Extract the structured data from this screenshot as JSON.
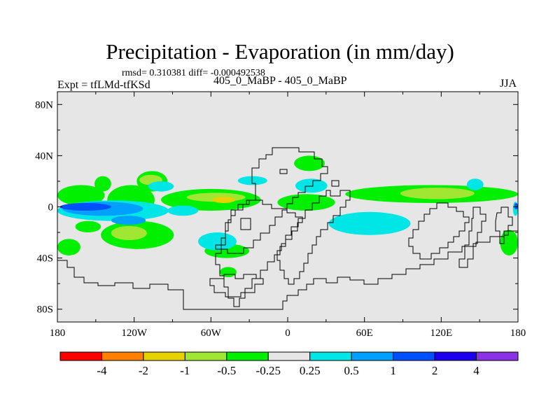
{
  "header": {
    "title": "Precipitation - Evaporation (in mm/day)",
    "stats": "rmsd= 0.310381 diff= -0.000492538",
    "experiment": "Expt = tfLMd-tfKSd",
    "center_label": "405_0_MaBP - 405_0_MaBP",
    "season": "JJA"
  },
  "chart_data": {
    "type": "heatmap",
    "title": "Precipitation - Evaporation (in mm/day)",
    "subtitle": "405_0_MaBP - 405_0_MaBP",
    "xlabel": "",
    "ylabel": "",
    "xlim": [
      -180,
      180
    ],
    "ylim": [
      -90,
      90
    ],
    "x_ticks": [
      {
        "value": -180,
        "label": "180"
      },
      {
        "value": -120,
        "label": "120W"
      },
      {
        "value": -60,
        "label": "60W"
      },
      {
        "value": 0,
        "label": "0"
      },
      {
        "value": 60,
        "label": "60E"
      },
      {
        "value": 120,
        "label": "120E"
      },
      {
        "value": 180,
        "label": "180"
      }
    ],
    "y_ticks": [
      {
        "value": 80,
        "label": "80N"
      },
      {
        "value": 40,
        "label": "40N"
      },
      {
        "value": 0,
        "label": "0"
      },
      {
        "value": -40,
        "label": "40S"
      },
      {
        "value": -80,
        "label": "80S"
      }
    ],
    "background_color": "#e6e6e6",
    "colorbar": {
      "colors": [
        "#ff0000",
        "#ff8000",
        "#e6d200",
        "#a0e632",
        "#00f000",
        "#e6e6e6",
        "#00e6e6",
        "#00a0ff",
        "#0050ff",
        "#1e00f0",
        "#8c32e6"
      ],
      "labels": [
        "-4",
        "-2",
        "-1",
        "-0.5",
        "-0.25",
        "0.25",
        "0.5",
        "1",
        "2",
        "4"
      ]
    },
    "regions": [
      {
        "level": "-0.25",
        "color": "#00f000",
        "lon": [
          -180,
          -143
        ],
        "lat": [
          1,
          17
        ]
      },
      {
        "level": "-0.25",
        "color": "#00f000",
        "lon": [
          -166,
          -146
        ],
        "lat": [
          -20,
          -11
        ]
      },
      {
        "level": "-0.25",
        "color": "#00f000",
        "lon": [
          -141,
          -104
        ],
        "lat": [
          -6,
          17
        ]
      },
      {
        "level": "-0.25",
        "color": "#00f000",
        "lon": [
          -99,
          -21
        ],
        "lat": [
          -3,
          14
        ]
      },
      {
        "level": "-0.25",
        "color": "#00f000",
        "lon": [
          -146,
          -89
        ],
        "lat": [
          -33,
          -11
        ]
      },
      {
        "level": "-0.25",
        "color": "#00f000",
        "lon": [
          -118,
          -94
        ],
        "lat": [
          12,
          28
        ]
      },
      {
        "level": "-0.25",
        "color": "#00f000",
        "lon": [
          -151,
          -138
        ],
        "lat": [
          12,
          24
        ]
      },
      {
        "level": "-0.25",
        "color": "#00f000",
        "lon": [
          -65,
          -30
        ],
        "lat": [
          -40,
          -29
        ]
      },
      {
        "level": "-0.25",
        "color": "#00f000",
        "lon": [
          -8,
          37
        ],
        "lat": [
          -3,
          10
        ]
      },
      {
        "level": "-0.25",
        "color": "#00f000",
        "lon": [
          45,
          180
        ],
        "lat": [
          3,
          17
        ]
      },
      {
        "level": "-0.25",
        "color": "#00f000",
        "lon": [
          5,
          29
        ],
        "lat": [
          28,
          40
        ]
      },
      {
        "level": "-0.25",
        "color": "#00f000",
        "lon": [
          -180,
          -162
        ],
        "lat": [
          -38,
          -25
        ]
      },
      {
        "level": "-0.25",
        "color": "#00f000",
        "lon": [
          166,
          180
        ],
        "lat": [
          -38,
          -18
        ]
      },
      {
        "level": "-0.25",
        "color": "#00f000",
        "lon": [
          -53,
          -40
        ],
        "lat": [
          -55,
          -47
        ]
      },
      {
        "level": "-0.5",
        "color": "#a0e632",
        "lon": [
          -79,
          -33
        ],
        "lat": [
          4,
          11
        ]
      },
      {
        "level": "-0.5",
        "color": "#a0e632",
        "lon": [
          -138,
          -110
        ],
        "lat": [
          -26,
          -15
        ]
      },
      {
        "level": "-0.5",
        "color": "#a0e632",
        "lon": [
          88,
          146
        ],
        "lat": [
          6,
          15
        ]
      },
      {
        "level": "-0.5",
        "color": "#a0e632",
        "lon": [
          -116,
          -98
        ],
        "lat": [
          17,
          25
        ]
      },
      {
        "level": "-1",
        "color": "#e6d200",
        "lon": [
          -59,
          -41
        ],
        "lat": [
          3,
          8
        ]
      },
      {
        "level": "0.25",
        "color": "#00e6e6",
        "lon": [
          -180,
          -93
        ],
        "lat": [
          -11,
          5
        ]
      },
      {
        "level": "0.25",
        "color": "#00e6e6",
        "lon": [
          -94,
          -70
        ],
        "lat": [
          -7,
          1
        ]
      },
      {
        "level": "0.25",
        "color": "#00e6e6",
        "lon": [
          -109,
          -89
        ],
        "lat": [
          12,
          20
        ]
      },
      {
        "level": "0.25",
        "color": "#00e6e6",
        "lon": [
          -39,
          -16
        ],
        "lat": [
          17,
          24
        ]
      },
      {
        "level": "0.25",
        "color": "#00e6e6",
        "lon": [
          32,
          96
        ],
        "lat": [
          -22,
          -4
        ]
      },
      {
        "level": "0.25",
        "color": "#00e6e6",
        "lon": [
          -70,
          -40
        ],
        "lat": [
          -34,
          -20
        ]
      },
      {
        "level": "0.25",
        "color": "#00e6e6",
        "lon": [
          6,
          31
        ],
        "lat": [
          11,
          22
        ]
      },
      {
        "level": "0.25",
        "color": "#00e6e6",
        "lon": [
          140,
          153
        ],
        "lat": [
          13,
          22
        ]
      },
      {
        "level": "0.25",
        "color": "#00e6e6",
        "lon": [
          176,
          180
        ],
        "lat": [
          -7,
          4
        ]
      },
      {
        "level": "0.5",
        "color": "#00a0ff",
        "lon": [
          -176,
          -113
        ],
        "lat": [
          -7,
          4
        ]
      },
      {
        "level": "0.5",
        "color": "#00a0ff",
        "lon": [
          -138,
          -111
        ],
        "lat": [
          -14,
          -7
        ]
      },
      {
        "level": "1",
        "color": "#0050ff",
        "lon": [
          -178,
          -138
        ],
        "lat": [
          -3,
          3
        ]
      },
      {
        "level": "1",
        "color": "#0050ff",
        "lon": [
          177,
          180
        ],
        "lat": [
          -2,
          3
        ]
      }
    ]
  }
}
